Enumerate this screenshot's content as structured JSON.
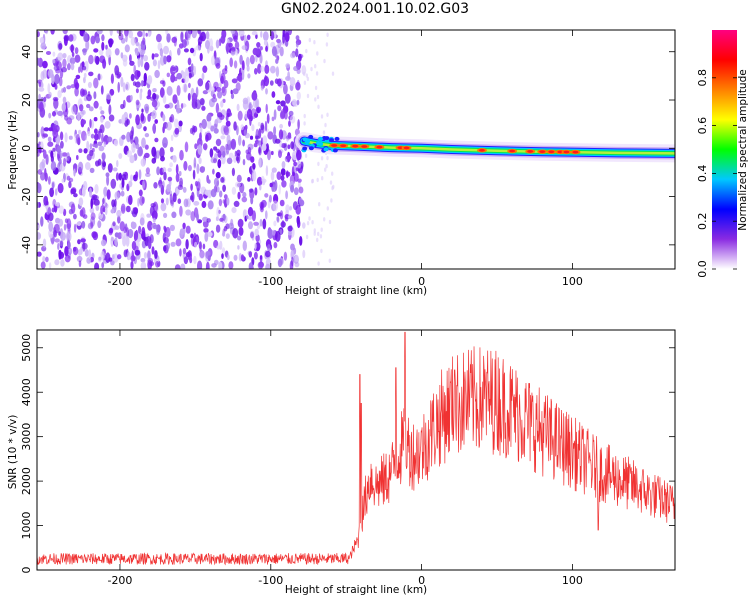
{
  "title": "GN02.2024.001.10.02.G03",
  "chart_data": [
    {
      "type": "heatmap",
      "xlabel": "Height of straight line (km)",
      "ylabel": "Frequency (Hz)",
      "xlim": [
        -255,
        168
      ],
      "ylim": [
        -50,
        49
      ],
      "xticks": [
        -200,
        -100,
        0,
        100
      ],
      "yticks": [
        -40,
        -20,
        0,
        20,
        40
      ],
      "ridge": [
        {
          "x": -78,
          "y": 3
        },
        {
          "x": -70,
          "y": 2
        },
        {
          "x": -60,
          "y": 1.2
        },
        {
          "x": -50,
          "y": 1
        },
        {
          "x": -40,
          "y": 0.8
        },
        {
          "x": -20,
          "y": 0.3
        },
        {
          "x": 0,
          "y": 0
        },
        {
          "x": 20,
          "y": -0.5
        },
        {
          "x": 50,
          "y": -1
        },
        {
          "x": 80,
          "y": -1.4
        },
        {
          "x": 104,
          "y": -1.6
        },
        {
          "x": 130,
          "y": -1.9
        },
        {
          "x": 168,
          "y": -2.1
        }
      ],
      "noise_region": [
        -255,
        -78
      ],
      "colorbar": {
        "label": "Normalized spectral amplitude",
        "range": [
          0,
          1
        ],
        "ticks": [
          "0.0",
          "0.2",
          "0.4",
          "0.6",
          "0.8"
        ],
        "colors": [
          "#ffffff",
          "#8a2be2",
          "#0000ff",
          "#00c8ff",
          "#00ff00",
          "#ffff00",
          "#ff8000",
          "#ff0000",
          "#ff0080"
        ]
      }
    },
    {
      "type": "line",
      "xlabel": "Height of straight line (km)",
      "ylabel": "SNR (10 * v/v)",
      "xlim": [
        -255,
        168
      ],
      "ylim": [
        0,
        5400
      ],
      "xticks": [
        -200,
        -100,
        0,
        100
      ],
      "yticks": [
        0,
        1000,
        2000,
        3000,
        4000,
        5000
      ],
      "color": "#f03232",
      "envelope": {
        "x": [
          -255,
          -60,
          -48,
          -42,
          -38,
          -34,
          -30,
          -25,
          -20,
          -15,
          -10,
          -5,
          0,
          10,
          20,
          30,
          40,
          50,
          60,
          80,
          100,
          120,
          140,
          168
        ],
        "y": [
          250,
          250,
          260,
          700,
          1500,
          2100,
          1900,
          2000,
          2200,
          2700,
          2800,
          2600,
          2700,
          3300,
          3700,
          3800,
          3850,
          3800,
          3600,
          3100,
          2650,
          2200,
          1900,
          1450
        ]
      },
      "spikes": [
        {
          "x": -11,
          "y": 5350
        },
        {
          "x": -17,
          "y": 4550
        },
        {
          "x": -40,
          "y": 3750
        },
        {
          "x": -41,
          "y": 4400
        },
        {
          "x": 22,
          "y": 4500
        },
        {
          "x": 117,
          "y": 900
        }
      ]
    }
  ]
}
